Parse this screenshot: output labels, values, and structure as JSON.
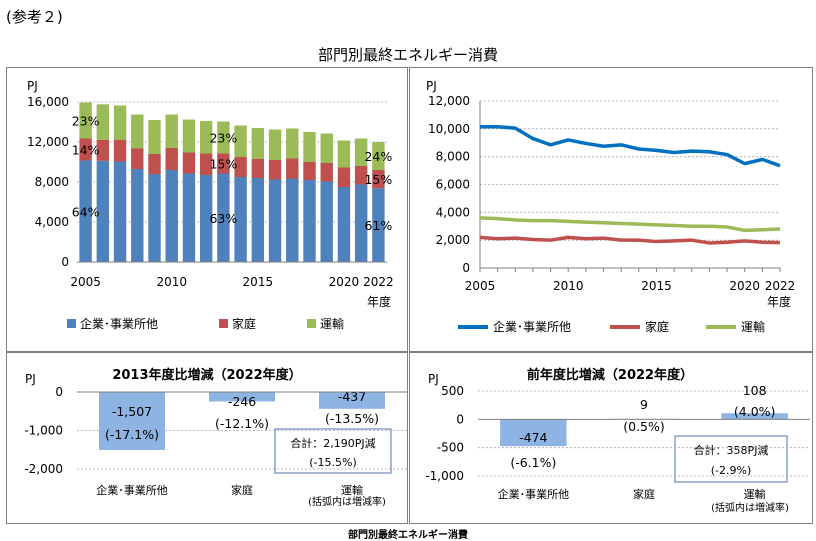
{
  "page": {
    "ref_label": "(参考２)",
    "main_title": "部門別最終エネルギー消費",
    "footer_title": "部門別最終エネルギー消費"
  },
  "colors": {
    "industry": "#4f81bd",
    "household": "#c0504d",
    "transport": "#9bbb59",
    "diffbar": "#8db4e2",
    "grid": "#a6a6a6"
  },
  "legend": {
    "industry": "企業･事業所他",
    "household": "家庭",
    "transport": "運輸"
  },
  "chart_data": [
    {
      "id": "stacked",
      "type": "bar",
      "stacked": true,
      "unit": "PJ",
      "x_ticks": [
        "2005",
        "2010",
        "2015",
        "2020",
        "2022"
      ],
      "x_unit": "年度",
      "ylim": [
        0,
        16000
      ],
      "y_ticks": [
        "0",
        "4,000",
        "8,000",
        "12,000",
        "16,000"
      ],
      "categories": [
        2005,
        2006,
        2007,
        2008,
        2009,
        2010,
        2011,
        2012,
        2013,
        2014,
        2015,
        2016,
        2017,
        2018,
        2019,
        2020,
        2021,
        2022
      ],
      "series": [
        {
          "name": "企業･事業所他",
          "values": [
            10150,
            10120,
            10050,
            9300,
            8800,
            9200,
            8850,
            8700,
            8850,
            8500,
            8400,
            8250,
            8350,
            8200,
            8050,
            7500,
            7750,
            7380
          ]
        },
        {
          "name": "家庭",
          "values": [
            2200,
            2100,
            2150,
            2050,
            2000,
            2200,
            2100,
            2150,
            2000,
            2000,
            1900,
            1950,
            2000,
            1800,
            1850,
            1950,
            1850,
            1820
          ]
        },
        {
          "name": "運輸",
          "values": [
            3600,
            3550,
            3450,
            3400,
            3400,
            3350,
            3300,
            3250,
            3200,
            3150,
            3100,
            3050,
            3000,
            3000,
            2950,
            2700,
            2750,
            2800
          ]
        }
      ],
      "data_labels": [
        "23%",
        "14%",
        "64%",
        "23%",
        "15%",
        "63%",
        "24%",
        "15%",
        "61%"
      ]
    },
    {
      "id": "lines",
      "type": "line",
      "unit": "PJ",
      "x_ticks": [
        "2005",
        "2010",
        "2015",
        "2020",
        "2022"
      ],
      "x_unit": "年度",
      "ylim": [
        0,
        12000
      ],
      "y_ticks": [
        "0",
        "2,000",
        "4,000",
        "6,000",
        "8,000",
        "10,000",
        "12,000"
      ],
      "x": [
        2005,
        2006,
        2007,
        2008,
        2009,
        2010,
        2011,
        2012,
        2013,
        2014,
        2015,
        2016,
        2017,
        2018,
        2019,
        2020,
        2021,
        2022
      ],
      "series": [
        {
          "name": "企業･事業所他",
          "values": [
            10150,
            10150,
            10050,
            9300,
            8850,
            9200,
            8950,
            8750,
            8850,
            8550,
            8450,
            8300,
            8400,
            8350,
            8150,
            7500,
            7800,
            7350
          ]
        },
        {
          "name": "家庭",
          "values": [
            2200,
            2100,
            2150,
            2050,
            2000,
            2200,
            2100,
            2150,
            2000,
            2000,
            1900,
            1950,
            2000,
            1800,
            1850,
            1950,
            1850,
            1820
          ]
        },
        {
          "name": "運輸",
          "values": [
            3600,
            3550,
            3450,
            3400,
            3400,
            3350,
            3300,
            3250,
            3200,
            3150,
            3100,
            3050,
            3000,
            3000,
            2950,
            2700,
            2750,
            2800
          ]
        }
      ]
    },
    {
      "id": "diff2013",
      "type": "bar",
      "title": "2013年度比増減（2022年度）",
      "unit": "PJ",
      "ylim": [
        -2000,
        0
      ],
      "y_ticks": [
        "0",
        "-1,000",
        "-2,000"
      ],
      "categories": [
        "企業･事業所他",
        "家庭",
        "運輸"
      ],
      "values": [
        -1507,
        -246,
        -437
      ],
      "value_labels": [
        "-1,507",
        "-246",
        "-437"
      ],
      "rate_labels": [
        "(-17.1%)",
        "(-12.1%)",
        "(-13.5%)"
      ],
      "note": "(括弧内は増減率)",
      "total_lines": [
        "合計：2,190PJ減",
        "(-15.5%)"
      ]
    },
    {
      "id": "diffprev",
      "type": "bar",
      "title": "前年度比増減（2022年度）",
      "unit": "PJ",
      "ylim": [
        -1000,
        500
      ],
      "y_ticks": [
        "500",
        "0",
        "-500",
        "-1,000"
      ],
      "categories": [
        "企業･事業所他",
        "家庭",
        "運輸"
      ],
      "values": [
        -474,
        9,
        108
      ],
      "value_labels": [
        "-474",
        "9",
        "108"
      ],
      "rate_labels": [
        "(-6.1%)",
        "(0.5%)",
        "(4.0%)"
      ],
      "note": "(括弧内は増減率)",
      "total_lines": [
        "合計：358PJ減",
        "(-2.9%)"
      ]
    }
  ]
}
